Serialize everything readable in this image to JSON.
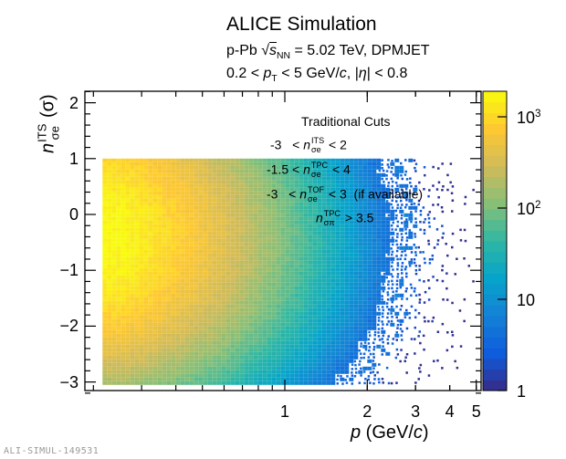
{
  "header": {
    "title": "ALICE Simulation",
    "system": "p-Pb",
    "sqrt_symbol": "√",
    "s": "s",
    "s_sub": "NN",
    "energy_text": "= 5.02 TeV, DPMJET",
    "cut_lo": "0.2 <",
    "pt": "p",
    "pt_sub": "T",
    "cut_hi": "< 5 GeV/",
    "c": "c",
    "eta_pre": ", |",
    "eta": "η",
    "eta_post": "| < 0.8"
  },
  "cuts": {
    "title": "Traditional Cuts",
    "n": "n",
    "rows": [
      {
        "lo": "-3   <",
        "sup": "ITS",
        "sub": "σe",
        "hi": "< 2"
      },
      {
        "lo": "-1.5 <",
        "sup": "TPC",
        "sub": "σe",
        "hi": "< 4"
      },
      {
        "lo": "-3   <",
        "sup": "TOF",
        "sub": "σe",
        "hi": "< 3  (if available)"
      },
      {
        "lo": "",
        "sup": "TPC",
        "sub": "σπ",
        "hi": "> 3.5"
      }
    ]
  },
  "chart_data": {
    "type": "heatmap",
    "xlabel": {
      "var": "p",
      "unit_pre": " (GeV/",
      "unit_c": "c",
      "unit_post": ")"
    },
    "ylabel": {
      "var": "n",
      "sup": "ITS",
      "sub": "σe",
      "unit": " (σ)"
    },
    "xscale": "log",
    "xlim": [
      0.2,
      5.2
    ],
    "ylim": [
      -3.2,
      2.2
    ],
    "data_y_range": [
      -3,
      1
    ],
    "xticks": [
      {
        "v": 1,
        "label": "1"
      },
      {
        "v": 2,
        "label": "2"
      },
      {
        "v": 3,
        "label": "3"
      },
      {
        "v": 4,
        "label": "4"
      },
      {
        "v": 5,
        "label": "5"
      }
    ],
    "yticks": [
      {
        "v": 2,
        "label": "2"
      },
      {
        "v": 1,
        "label": "1"
      },
      {
        "v": 0,
        "label": "0"
      },
      {
        "v": -1,
        "label": "−1"
      },
      {
        "v": -2,
        "label": "−2"
      },
      {
        "v": -3,
        "label": "−3"
      }
    ],
    "zscale": "log",
    "zlim": [
      1,
      1900
    ],
    "zticks": [
      {
        "v": 1,
        "label": "1"
      },
      {
        "v": 10,
        "label": "10"
      },
      {
        "v": 100,
        "label": "10",
        "exp": "2"
      },
      {
        "v": 1000,
        "label": "10",
        "exp": "3"
      }
    ],
    "peak": {
      "p": 0.25,
      "n": -0.4,
      "counts": 1800
    },
    "colormap": "bird",
    "grid": false,
    "colors": {
      "low": "#352a87",
      "mid": "#2eb7a4",
      "high": "#f9fb0e"
    }
  },
  "watermark": "ALI-SIMUL-149531"
}
